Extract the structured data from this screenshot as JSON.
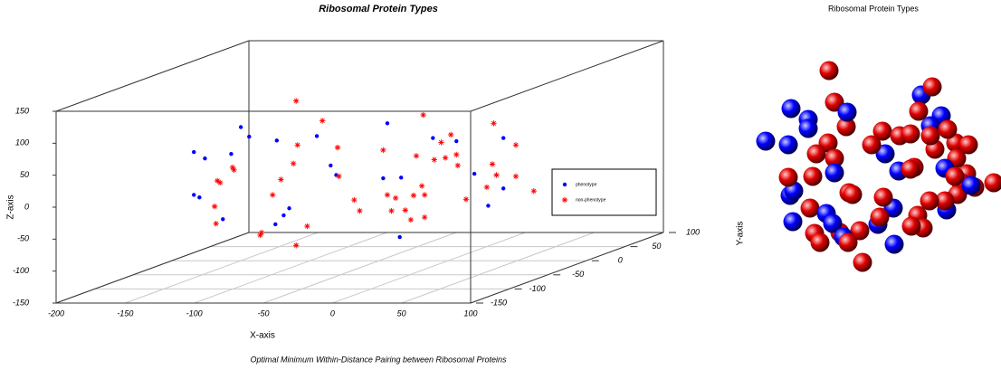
{
  "chart_data": [
    {
      "type": "scatter3d",
      "title": "Ribosomal Protein Types",
      "subtitle": "Optimal Minimum Within-Distance Pairing between Ribosomal Proteins",
      "x_label": "X-axis",
      "z_label": "Z-axis",
      "xlim": [
        -200,
        100
      ],
      "xticks": [
        -200,
        -150,
        -100,
        -50,
        0,
        50,
        100
      ],
      "ylim": [
        -150,
        100
      ],
      "yticks": [
        -150,
        -100,
        -50,
        0,
        50,
        100
      ],
      "zlim": [
        -150,
        150
      ],
      "zticks": [
        -150,
        -100,
        -50,
        0,
        50,
        100,
        150
      ],
      "grid": true,
      "legend": "right",
      "series": [
        {
          "name": "phenotype",
          "color": "#0000ff",
          "marker": "dot",
          "x": [
            -184,
            -176,
            -184,
            -180,
            -163,
            -157,
            -150,
            -144,
            -125,
            -119,
            -115,
            -124,
            -95,
            -85,
            -81,
            -44,
            -47,
            -34,
            -35,
            -11,
            6,
            19,
            29,
            40,
            40
          ],
          "y": [
            0,
            0,
            0,
            0,
            0,
            0,
            0,
            0,
            0,
            0,
            0,
            0,
            0,
            0,
            0,
            0,
            0,
            0,
            0,
            0,
            0,
            0,
            0,
            0,
            0
          ],
          "z": [
            20,
            10,
            -47,
            -51,
            -85,
            17,
            59,
            44,
            -93,
            -79,
            -68,
            38,
            45,
            -1,
            -16,
            65,
            -21,
            -20,
            -113,
            42,
            37,
            -14,
            -64,
            42,
            -37
          ]
        },
        {
          "name": "non-phenotype",
          "color": "#ff0000",
          "marker": "asterisk",
          "x": [
            -110,
            -91,
            -109,
            -112,
            -121,
            -127,
            -135,
            -136,
            -110,
            -102,
            -156,
            -155,
            -167,
            -165,
            -169,
            -168,
            -80,
            -79,
            -68,
            -64,
            -47,
            -44,
            -38,
            -41,
            -31,
            -25,
            -23,
            -17,
            -19,
            -17,
            -27,
            -18,
            -10,
            -5,
            2,
            -2,
            6,
            7,
            13,
            28,
            33,
            32,
            35,
            49,
            49,
            62
          ],
          "y": [
            0,
            0,
            0,
            0,
            0,
            0,
            0,
            0,
            0,
            0,
            0,
            0,
            0,
            0,
            0,
            0,
            0,
            0,
            0,
            0,
            0,
            0,
            0,
            0,
            0,
            0,
            0,
            0,
            0,
            0,
            0,
            0,
            0,
            0,
            0,
            0,
            0,
            0,
            0,
            0,
            0,
            0,
            0,
            0,
            0,
            0
          ],
          "z": [
            100,
            69,
            31,
            2,
            -23,
            -47,
            -106,
            -110,
            -126,
            -96,
            -4,
            -8,
            -25,
            -28,
            -65,
            -92,
            27,
            -18,
            -55,
            -72,
            23,
            -47,
            -52,
            -72,
            -71,
            -48,
            14,
            -47,
            -33,
            -82,
            -86,
            78,
            8,
            35,
            47,
            11,
            16,
            -1,
            -54,
            -35,
            65,
            1,
            -16,
            31,
            -18,
            -41
          ]
        }
      ]
    },
    {
      "type": "spheres",
      "title": "Ribosomal Protein Types",
      "y_label": "Y-axis",
      "xlim": [
        0,
        271
      ],
      "ylim": [
        0,
        240
      ],
      "series": [
        {
          "color": "#0000ff",
          "x": [
            39,
            58,
            58,
            101,
            11,
            36,
            87,
            143,
            158,
            183,
            205,
            193,
            209,
            238,
            211,
            38,
            42,
            41,
            78,
            85,
            97,
            135,
            152,
            153
          ],
          "y": [
            185,
            173,
            163,
            181,
            149,
            145,
            114,
            135,
            116,
            200,
            177,
            166,
            119,
            100,
            73,
            89,
            94,
            60,
            69,
            58,
            43,
            57,
            75,
            35
          ]
        },
        {
          "color": "#ff0000",
          "x": [
            81,
            87,
            100,
            80,
            67,
            87,
            128,
            140,
            159,
            171,
            195,
            180,
            193,
            212,
            198,
            221,
            235,
            222,
            175,
            171,
            220,
            233,
            227,
            242,
            263,
            223,
            209,
            192,
            179,
            185,
            172,
            141,
            137,
            115,
            107,
            103,
            60,
            36,
            63,
            65,
            71,
            102,
            118,
            93
          ],
          "y": [
            227,
            192,
            165,
            147,
            135,
            130,
            145,
            160,
            155,
            157,
            209,
            182,
            155,
            162,
            140,
            147,
            145,
            130,
            120,
            118,
            110,
            113,
            103,
            98,
            103,
            90,
            83,
            83,
            67,
            53,
            55,
            87,
            65,
            50,
            90,
            92,
            75,
            109,
            110,
            47,
            37,
            37,
            15,
            48
          ]
        }
      ]
    }
  ]
}
